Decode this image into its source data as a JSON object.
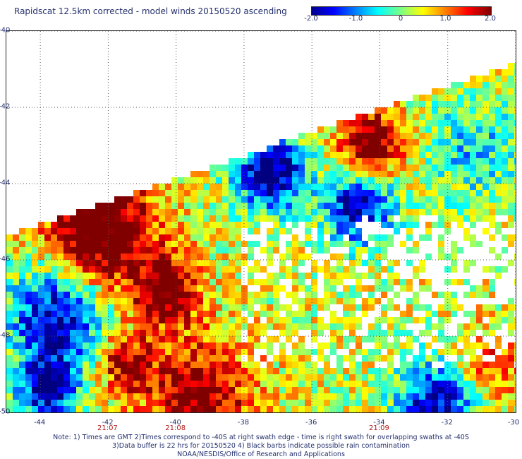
{
  "title": "Rapidscat 12.5km corrected - model winds 20150520 ascending",
  "colorbar": {
    "min": -2.0,
    "max": 2.0,
    "tick_labels": [
      "-2.0",
      "-1.0",
      "0",
      "1.0",
      "2.0"
    ],
    "tick_values": [
      -2.0,
      -1.0,
      0,
      1.0,
      2.0
    ]
  },
  "map": {
    "lat_labels": [
      "-40",
      "-42",
      "-44",
      "-46",
      "-48",
      "-50"
    ],
    "lat_values": [
      -40,
      -42,
      -44,
      -46,
      -48,
      -50
    ],
    "lon_labels": [
      "-44",
      "-42",
      "-40",
      "-38",
      "-36",
      "-34",
      "-32",
      "-30"
    ],
    "lon_values": [
      -44,
      -42,
      -40,
      -38,
      -36,
      -34,
      -32,
      -30
    ],
    "lon_range": [
      -45,
      -30
    ],
    "lat_range": [
      -40,
      -50
    ],
    "times": [
      {
        "label": "21:07",
        "lon": -42
      },
      {
        "label": "21:08",
        "lon": -40
      },
      {
        "label": "21:09",
        "lon": -34
      }
    ]
  },
  "notes": {
    "line1": "Note: 1) Times are GMT 2)Times correspond to -40S at right swath edge - time is right swath for overlapping swaths at -40S",
    "line2": "3)Data buffer is 22 hrs for 20150520 4) Black barbs indicate possible rain contamination",
    "line3": "NOAA/NESDIS/Office of Research and Applications"
  }
}
